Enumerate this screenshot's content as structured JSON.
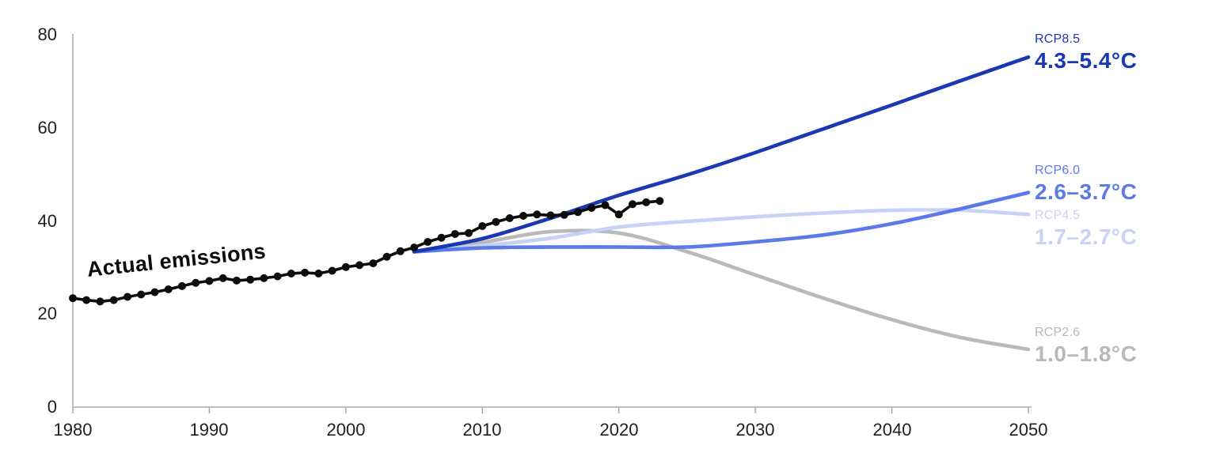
{
  "chart_data": {
    "type": "line",
    "title": "",
    "xlabel": "",
    "ylabel": "",
    "xlim": [
      1980,
      2050
    ],
    "ylim": [
      0,
      80
    ],
    "grid": false,
    "legend_position": "right-edge-annotations",
    "axis_color": "#a8a8a8",
    "xtick_labels": [
      "1980",
      "1990",
      "2000",
      "2010",
      "2020",
      "2030",
      "2040",
      "2050"
    ],
    "ytick_labels": [
      "80",
      "60",
      "40",
      "20",
      "0"
    ],
    "series": [
      {
        "name": "Actual emissions",
        "style": "line-with-dot-markers",
        "color": "#0c0c0c",
        "x": [
          1980,
          1981,
          1982,
          1983,
          1984,
          1985,
          1986,
          1987,
          1988,
          1989,
          1990,
          1991,
          1992,
          1993,
          1994,
          1995,
          1996,
          1997,
          1998,
          1999,
          2000,
          2001,
          2002,
          2003,
          2004,
          2005,
          2006,
          2007,
          2008,
          2009,
          2010,
          2011,
          2012,
          2013,
          2014,
          2015,
          2016,
          2017,
          2018,
          2019,
          2020,
          2021,
          2022,
          2023
        ],
        "values": [
          23.4,
          23.0,
          22.7,
          23.0,
          23.7,
          24.2,
          24.7,
          25.3,
          26.0,
          26.7,
          27.1,
          27.7,
          27.2,
          27.4,
          27.7,
          28.1,
          28.7,
          28.9,
          28.7,
          29.3,
          30.1,
          30.5,
          30.9,
          32.3,
          33.5,
          34.3,
          35.5,
          36.4,
          37.2,
          37.4,
          38.9,
          39.8,
          40.6,
          41.1,
          41.4,
          41.2,
          41.3,
          41.9,
          42.8,
          43.4,
          41.4,
          43.6,
          44.0,
          44.3
        ]
      },
      {
        "name": "RCP8.5",
        "range_label": "4.3–5.4°C",
        "style": "smooth-line",
        "color": "#1a38b2",
        "x": [
          2005,
          2010,
          2015,
          2020,
          2025,
          2030,
          2035,
          2040,
          2045,
          2050
        ],
        "values": [
          33.4,
          36.2,
          40.6,
          45.5,
          49.9,
          54.7,
          59.8,
          64.9,
          70.1,
          75.2
        ]
      },
      {
        "name": "RCP6.0",
        "range_label": "2.6–3.7°C",
        "style": "smooth-line",
        "color": "#5b7ae8",
        "x": [
          2005,
          2010,
          2015,
          2020,
          2025,
          2030,
          2035,
          2040,
          2045,
          2050
        ],
        "values": [
          33.4,
          34.2,
          34.4,
          34.4,
          34.4,
          35.5,
          37.0,
          39.4,
          42.6,
          46.1
        ]
      },
      {
        "name": "RCP4.5",
        "range_label": "1.7–2.7°C",
        "style": "smooth-line",
        "color": "#c7d2f8",
        "x": [
          2005,
          2010,
          2015,
          2020,
          2025,
          2030,
          2035,
          2040,
          2045,
          2050
        ],
        "values": [
          33.4,
          34.7,
          36.3,
          38.7,
          39.9,
          40.9,
          41.7,
          42.3,
          42.3,
          41.4
        ]
      },
      {
        "name": "RCP2.6",
        "range_label": "1.0–1.8°C",
        "style": "smooth-line",
        "color": "#b9b9b9",
        "x": [
          2005,
          2010,
          2015,
          2020,
          2025,
          2030,
          2035,
          2040,
          2045,
          2050
        ],
        "values": [
          33.4,
          35.4,
          37.7,
          37.4,
          33.4,
          28.4,
          23.4,
          18.8,
          15.0,
          12.4
        ]
      }
    ]
  }
}
